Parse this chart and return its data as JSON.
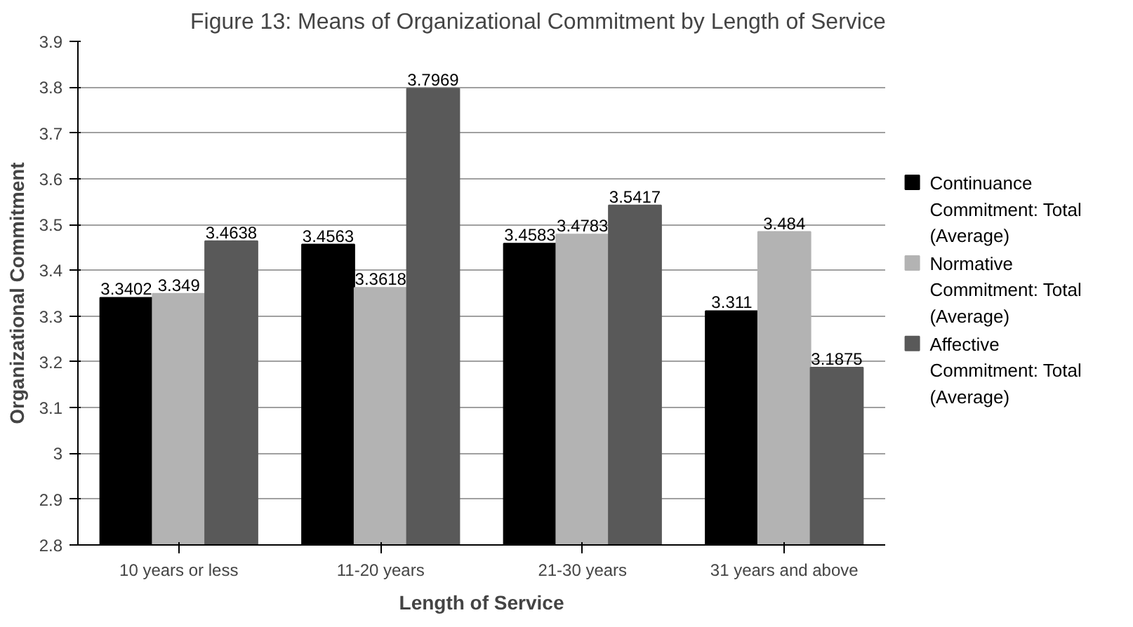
{
  "chart_data": {
    "type": "bar",
    "title": "Figure 13: Means of Organizational Commitment by Length of Service",
    "xlabel": "Length of Service",
    "ylabel": "Organizational Commitment",
    "categories": [
      "10 years or less",
      "11-20 years",
      "21-30 years",
      "31 years and above"
    ],
    "series": [
      {
        "name": "Continuance Commitment: Total (Average)",
        "color": "#000000",
        "values": [
          3.3402,
          3.4563,
          3.4583,
          3.311
        ]
      },
      {
        "name": "Normative Commitment: Total (Average)",
        "color": "#b3b3b3",
        "values": [
          3.349,
          3.3618,
          3.4783,
          3.484
        ]
      },
      {
        "name": "Affective Commitment: Total (Average)",
        "color": "#595959",
        "values": [
          3.4638,
          3.7969,
          3.5417,
          3.1875
        ]
      }
    ],
    "ylim": [
      2.8,
      3.9
    ],
    "yticks": [
      2.8,
      2.9,
      3,
      3.1,
      3.2,
      3.3,
      3.4,
      3.5,
      3.6,
      3.7,
      3.8,
      3.9
    ],
    "grid": "y",
    "legend": "right",
    "data_labels": true
  }
}
